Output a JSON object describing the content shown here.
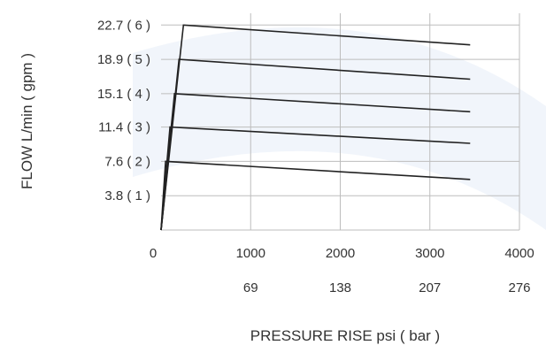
{
  "chart_data": {
    "type": "line",
    "title": "",
    "xlabel": "PRESSURE RISE psi ( bar )",
    "ylabel": "FLOW L/min ( gpm )",
    "xlim": [
      0,
      4000
    ],
    "ylim": [
      0,
      24
    ],
    "grid": true,
    "x_ticks": [
      0,
      1000,
      2000,
      3000,
      4000
    ],
    "x_tick_labels_psi": [
      "0",
      "1000",
      "2000",
      "3000",
      "4000"
    ],
    "x_tick_labels_bar": [
      "",
      "69",
      "138",
      "207",
      "276"
    ],
    "y_ticks": [
      3.8,
      7.6,
      11.4,
      15.1,
      18.9,
      22.7
    ],
    "y_tick_labels": [
      "3.8 ( 1 )",
      "7.6 ( 2 )",
      "11.4 ( 3 )",
      "15.1 ( 4 )",
      "18.9 ( 5 )",
      "22.7 ( 6 )"
    ],
    "series": [
      {
        "x": [
          0,
          250,
          3450
        ],
        "y": [
          0.0,
          22.7,
          20.5
        ]
      },
      {
        "x": [
          0,
          200,
          3450
        ],
        "y": [
          0.0,
          18.9,
          16.7
        ]
      },
      {
        "x": [
          0,
          150,
          3450
        ],
        "y": [
          0.0,
          15.1,
          13.1
        ]
      },
      {
        "x": [
          0,
          100,
          3450
        ],
        "y": [
          0.0,
          11.4,
          9.6
        ]
      },
      {
        "x": [
          0,
          50,
          3450
        ],
        "y": [
          0.0,
          7.6,
          5.6
        ]
      }
    ],
    "colors": {
      "line": "#222222",
      "grid": "#bdbdbd",
      "text": "#333333",
      "watermark": "#dbe3f4"
    }
  }
}
